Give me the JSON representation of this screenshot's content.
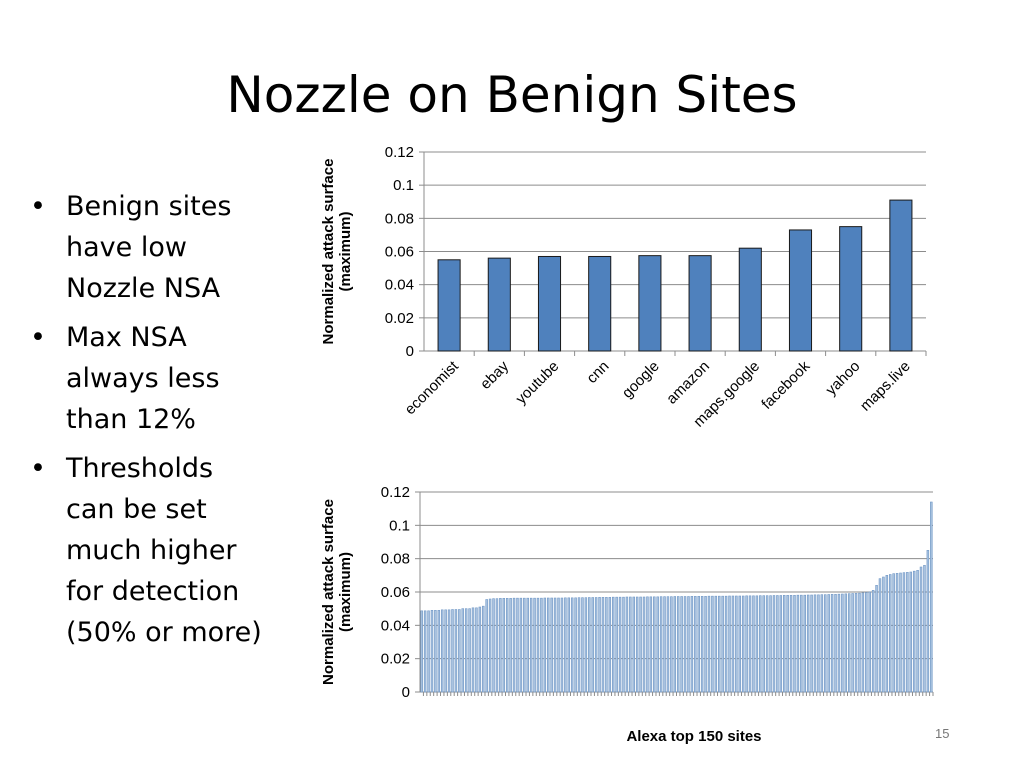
{
  "slide": {
    "title": "Nozzle on Benign Sites",
    "bullets": [
      [
        "Benign sites",
        "have low",
        "Nozzle NSA"
      ],
      [
        "Max NSA",
        "always less",
        "than 12%"
      ],
      [
        "Thresholds",
        "can be set",
        "much higher",
        "for detection",
        "(50% or more)"
      ]
    ],
    "bullet_symbol": "•",
    "page_number": "15"
  },
  "chart_data": [
    {
      "type": "bar",
      "ylabel": "Normalized attack surface (maximum)",
      "xlabel": "",
      "categories": [
        "economist",
        "ebay",
        "youtube",
        "cnn",
        "google",
        "amazon",
        "maps.google",
        "facebook",
        "yahoo",
        "maps.live"
      ],
      "values": [
        0.055,
        0.056,
        0.057,
        0.057,
        0.0575,
        0.0575,
        0.062,
        0.073,
        0.075,
        0.091
      ],
      "ylim": [
        0,
        0.12
      ],
      "yticks": [
        "0",
        "0.02",
        "0.04",
        "0.06",
        "0.08",
        "0.1",
        "0.12"
      ],
      "grid": true,
      "bar_color": "#4f81bd"
    },
    {
      "type": "bar",
      "ylabel": "Normalized attack surface (maximum)",
      "xlabel": "Alexa top 150 sites",
      "ylim": [
        0,
        0.12
      ],
      "yticks": [
        "0",
        "0.02",
        "0.04",
        "0.06",
        "0.08",
        "0.1",
        "0.12"
      ],
      "grid": true,
      "bar_color": "#4f81bd",
      "values": [
        0.0487,
        0.0487,
        0.0487,
        0.049,
        0.049,
        0.049,
        0.0493,
        0.0493,
        0.0493,
        0.0495,
        0.0495,
        0.0495,
        0.05,
        0.05,
        0.05,
        0.0505,
        0.0505,
        0.051,
        0.0515,
        0.0555,
        0.0558,
        0.056,
        0.056,
        0.0562,
        0.0562,
        0.0562,
        0.0562,
        0.0563,
        0.0563,
        0.0563,
        0.0563,
        0.0563,
        0.0563,
        0.0563,
        0.0563,
        0.0563,
        0.0564,
        0.0564,
        0.0564,
        0.0564,
        0.0564,
        0.0564,
        0.0565,
        0.0565,
        0.0565,
        0.0565,
        0.0566,
        0.0566,
        0.0566,
        0.0567,
        0.0567,
        0.0567,
        0.0568,
        0.0568,
        0.0568,
        0.0568,
        0.0569,
        0.0569,
        0.0569,
        0.0569,
        0.057,
        0.057,
        0.057,
        0.057,
        0.057,
        0.057,
        0.0571,
        0.0571,
        0.0571,
        0.0571,
        0.0572,
        0.0572,
        0.0572,
        0.0572,
        0.0573,
        0.0573,
        0.0573,
        0.0573,
        0.0573,
        0.0574,
        0.0574,
        0.0574,
        0.0574,
        0.0574,
        0.0575,
        0.0575,
        0.0575,
        0.0575,
        0.0575,
        0.0575,
        0.0576,
        0.0576,
        0.0576,
        0.0576,
        0.0576,
        0.0577,
        0.0577,
        0.0577,
        0.0577,
        0.0578,
        0.0578,
        0.0578,
        0.0578,
        0.0579,
        0.0579,
        0.0579,
        0.058,
        0.058,
        0.058,
        0.058,
        0.0581,
        0.0581,
        0.0581,
        0.0582,
        0.0582,
        0.0583,
        0.0583,
        0.0584,
        0.0584,
        0.0585,
        0.0586,
        0.0586,
        0.0587,
        0.0588,
        0.0589,
        0.059,
        0.0591,
        0.0592,
        0.0593,
        0.0595,
        0.0597,
        0.06,
        0.061,
        0.064,
        0.068,
        0.069,
        0.07,
        0.0705,
        0.071,
        0.0712,
        0.0714,
        0.0716,
        0.0718,
        0.072,
        0.0725,
        0.073,
        0.075,
        0.076,
        0.085,
        0.114
      ]
    }
  ]
}
